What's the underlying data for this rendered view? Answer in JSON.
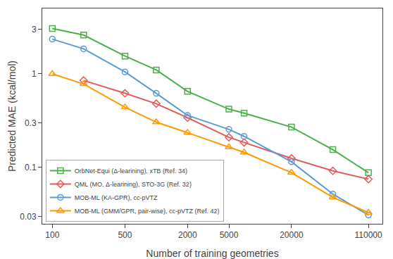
{
  "chart_data": {
    "type": "line",
    "xlabel": "Number of training geometries",
    "ylabel": "Predicted MAE (kcal/mol)",
    "series": [
      {
        "name": "OrbNet-Equi (Δ-learining), xTB (Ref. 34)",
        "color": "#4daf4a",
        "marker": "square",
        "x": [
          100,
          200,
          500,
          1000,
          2000,
          5000,
          7000,
          20000,
          50000,
          110000
        ],
        "values": [
          3.05,
          2.6,
          1.55,
          1.1,
          0.65,
          0.42,
          0.38,
          0.27,
          0.155,
          0.088
        ]
      },
      {
        "name": "QML (MO, Δ-learining), STO-3G (Ref. 32)",
        "color": "#e05c5c",
        "marker": "diamond",
        "x": [
          200,
          500,
          1000,
          2000,
          5000,
          7000,
          20000,
          50000,
          110000
        ],
        "values": [
          0.85,
          0.62,
          0.48,
          0.34,
          0.21,
          0.185,
          0.125,
          0.092,
          0.075
        ]
      },
      {
        "name": "MOB-ML (KA-GPR), cc-pVTZ",
        "color": "#5b9bd5",
        "marker": "circle",
        "x": [
          100,
          200,
          500,
          1000,
          2000,
          5000,
          7000,
          20000,
          50000,
          110000
        ],
        "values": [
          2.35,
          1.85,
          1.05,
          0.62,
          0.36,
          0.255,
          0.215,
          0.115,
          0.052,
          0.031
        ]
      },
      {
        "name": "MOB-ML (GMM/GPR, pair-wise), cc-pVTZ (Ref. 42)",
        "color": "#ff9a00",
        "marker": "triangle-up",
        "x": [
          100,
          200,
          500,
          1000,
          2000,
          5000,
          7000,
          20000,
          50000,
          110000
        ],
        "values": [
          1.0,
          0.78,
          0.44,
          0.305,
          0.235,
          0.165,
          0.145,
          0.088,
          0.048,
          0.033
        ]
      }
    ],
    "xlim": [
      80,
      150000
    ],
    "ylim": [
      0.025,
      5.0
    ],
    "xticks": [
      100,
      500,
      2000,
      5000,
      20000,
      110000
    ],
    "yticks": [
      0.03,
      0.1,
      0.3,
      1,
      3
    ],
    "log": true,
    "grid": false,
    "legend": "lower left"
  }
}
